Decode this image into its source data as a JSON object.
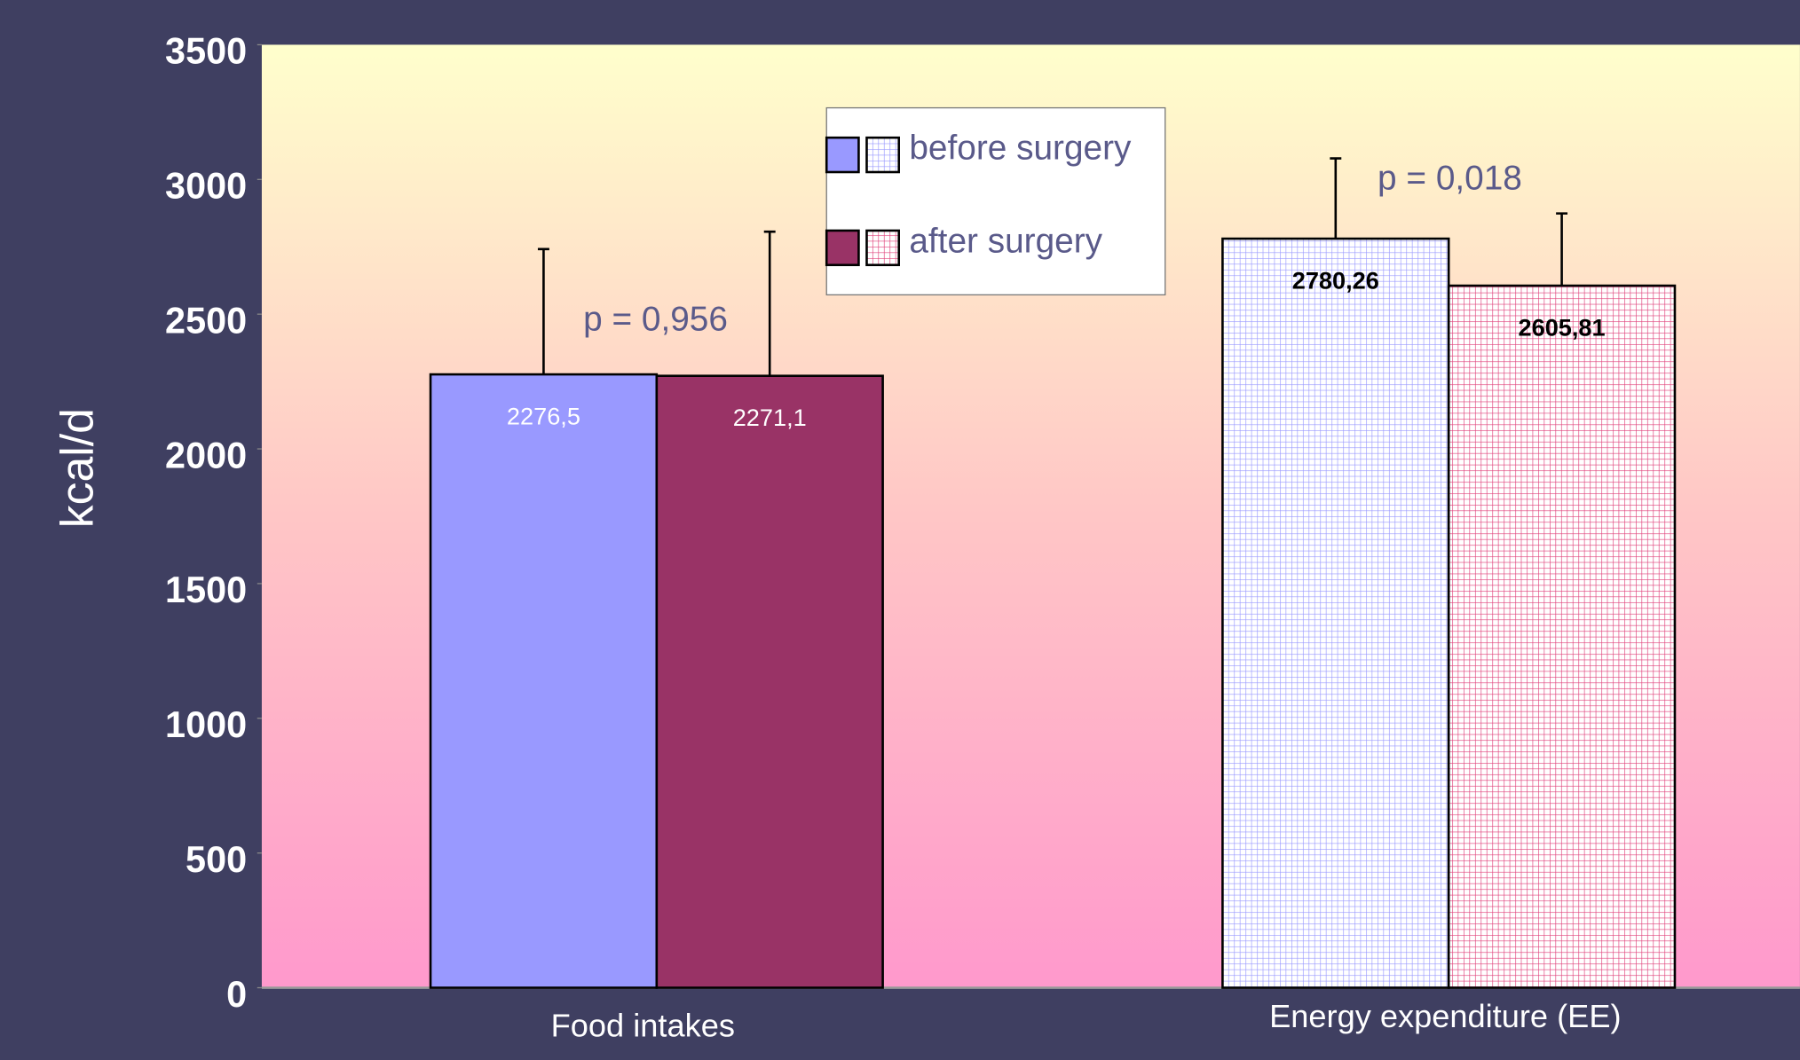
{
  "chart_data": {
    "type": "bar",
    "y_label": "kcal/d",
    "categories": [
      "Food intakes",
      "Energy expenditure (EE)"
    ],
    "series": [
      {
        "name": "before surgery",
        "color": "#9999ff",
        "pattern": [
          "solid",
          "grid"
        ],
        "values": [
          2276.5,
          2780.26
        ],
        "value_labels": [
          "2276,5",
          "2780,26"
        ],
        "errors": [
          465,
          298
        ]
      },
      {
        "name": "after surgery",
        "color": "#993366",
        "hatch_color": "#e0407a",
        "pattern": [
          "solid",
          "grid"
        ],
        "values": [
          2271.1,
          2605.81
        ],
        "value_labels": [
          "2271,1",
          "2605,81"
        ],
        "errors": [
          535,
          268
        ]
      }
    ],
    "annotations": [
      "p = 0,956",
      "p = 0,018"
    ],
    "ylim": [
      0,
      3500
    ],
    "yticks": [
      0,
      500,
      1000,
      1500,
      2000,
      2500,
      3000,
      3500
    ]
  }
}
